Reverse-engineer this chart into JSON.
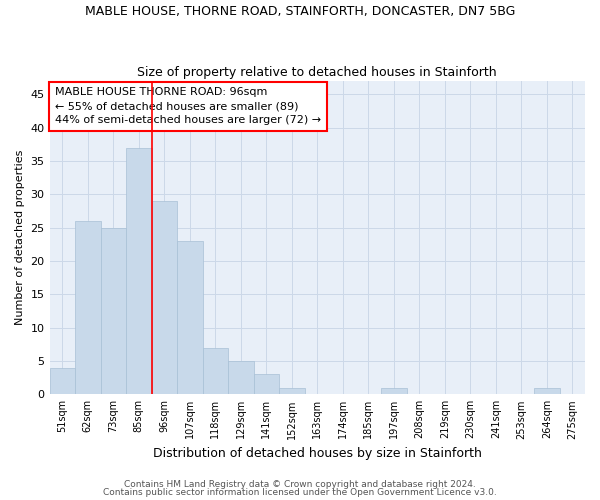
{
  "title": "MABLE HOUSE, THORNE ROAD, STAINFORTH, DONCASTER, DN7 5BG",
  "subtitle": "Size of property relative to detached houses in Stainforth",
  "xlabel": "Distribution of detached houses by size in Stainforth",
  "ylabel": "Number of detached properties",
  "bar_color": "#c8d9ea",
  "bar_edge_color": "#a8c0d6",
  "grid_color": "#ccd8e8",
  "bg_color": "#e8eff8",
  "categories": [
    "51sqm",
    "62sqm",
    "73sqm",
    "85sqm",
    "96sqm",
    "107sqm",
    "118sqm",
    "129sqm",
    "141sqm",
    "152sqm",
    "163sqm",
    "174sqm",
    "185sqm",
    "197sqm",
    "208sqm",
    "219sqm",
    "230sqm",
    "241sqm",
    "253sqm",
    "264sqm",
    "275sqm"
  ],
  "values": [
    4,
    26,
    25,
    37,
    29,
    23,
    7,
    5,
    3,
    1,
    0,
    0,
    0,
    1,
    0,
    0,
    0,
    0,
    0,
    1,
    0
  ],
  "property_line_idx": 4,
  "annotation_title": "MABLE HOUSE THORNE ROAD: 96sqm",
  "annotation_line1": "← 55% of detached houses are smaller (89)",
  "annotation_line2": "44% of semi-detached houses are larger (72) →",
  "footer1": "Contains HM Land Registry data © Crown copyright and database right 2024.",
  "footer2": "Contains public sector information licensed under the Open Government Licence v3.0.",
  "title_fontsize": 9,
  "subtitle_fontsize": 9,
  "ylabel_fontsize": 8,
  "xlabel_fontsize": 9,
  "tick_fontsize": 7,
  "annotation_fontsize": 8,
  "footer_fontsize": 6.5
}
